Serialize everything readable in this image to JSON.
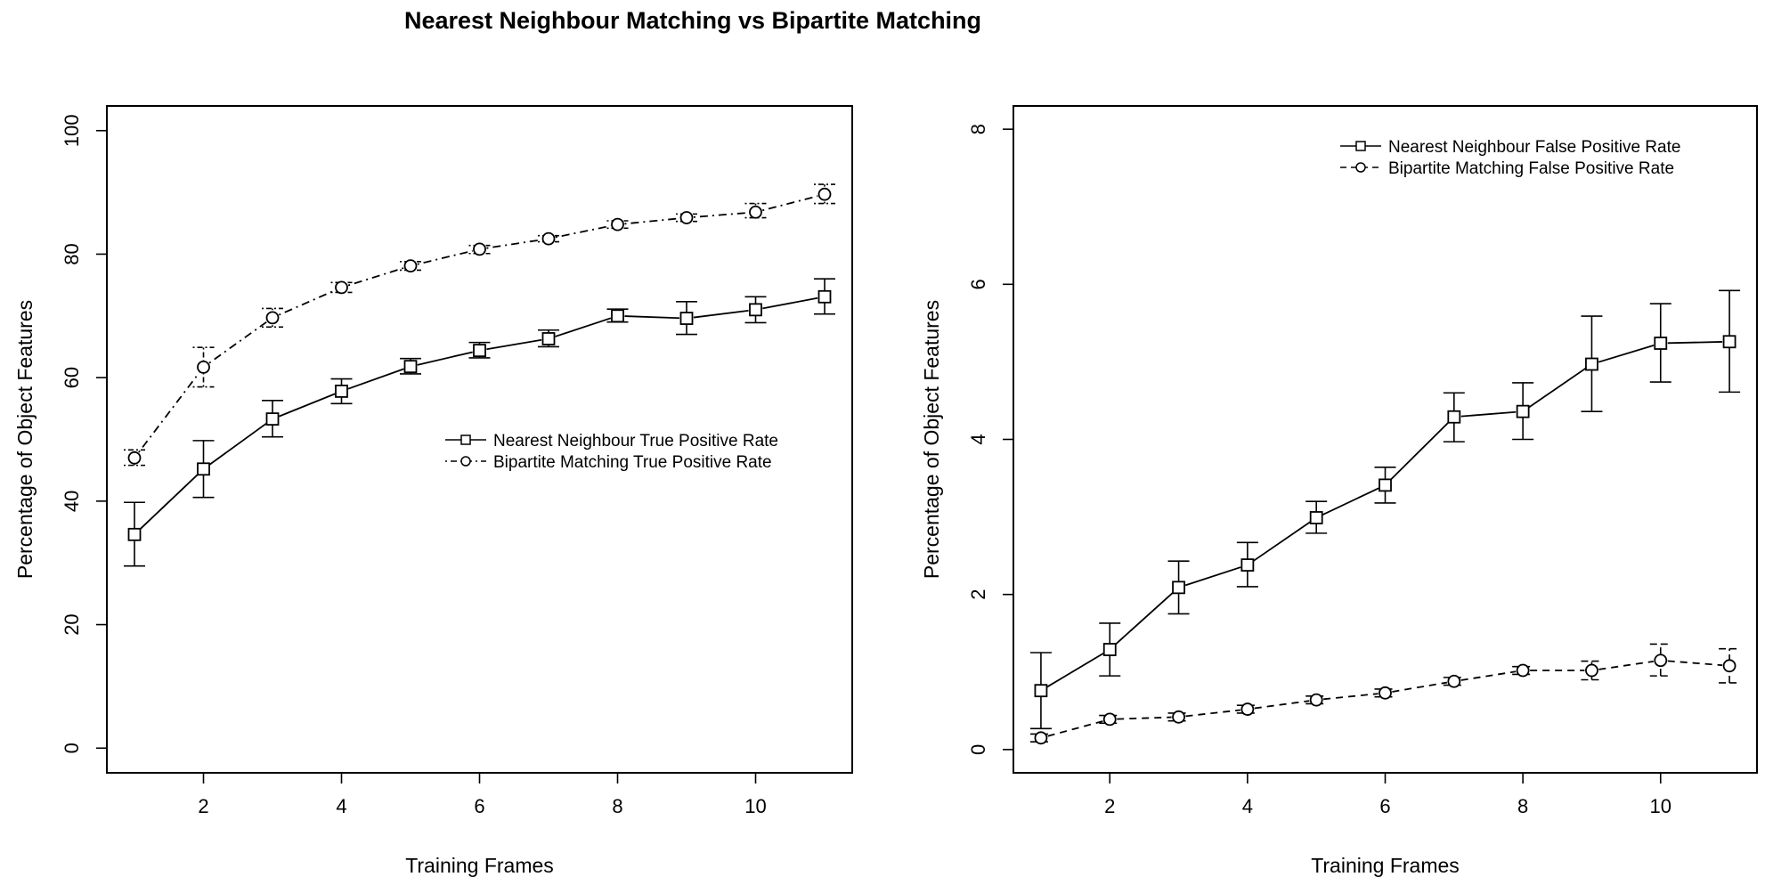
{
  "figure": {
    "title": "Nearest Neighbour Matching vs Bipartite Matching"
  },
  "chart_data": [
    {
      "type": "line",
      "xlabel": "Training Frames",
      "ylabel": "Percentage of Object Features",
      "xlim": [
        0.6,
        11.4
      ],
      "ylim": [
        -4,
        104
      ],
      "xticks": [
        2,
        4,
        6,
        8,
        10
      ],
      "yticks": [
        0,
        20,
        40,
        60,
        80,
        100
      ],
      "grid": false,
      "legend_position": "center-right",
      "series": [
        {
          "name": "Nearest Neighbour True Positive Rate",
          "marker": "square",
          "line_style": "solid",
          "x": [
            1,
            2,
            3,
            4,
            5,
            6,
            7,
            8,
            9,
            10,
            11
          ],
          "values": [
            34.6,
            45.2,
            53.3,
            57.8,
            61.8,
            64.4,
            66.3,
            70.0,
            69.6,
            71.0,
            73.1
          ],
          "error_low": [
            29.5,
            40.6,
            50.4,
            55.8,
            60.6,
            63.2,
            65.0,
            69.0,
            67.0,
            68.9,
            70.3
          ],
          "error_high": [
            39.8,
            49.8,
            56.3,
            59.8,
            63.1,
            65.7,
            67.7,
            71.1,
            72.3,
            73.1,
            76.0
          ]
        },
        {
          "name": "Bipartite Matching True Positive Rate",
          "marker": "circle",
          "line_style": "dotdash",
          "x": [
            1,
            2,
            3,
            4,
            5,
            6,
            7,
            8,
            9,
            10,
            11
          ],
          "values": [
            47.0,
            61.7,
            69.7,
            74.6,
            78.1,
            80.8,
            82.5,
            84.8,
            85.9,
            86.8,
            89.7
          ],
          "error_low": [
            45.8,
            58.5,
            68.2,
            73.8,
            77.4,
            80.1,
            82.0,
            84.2,
            85.3,
            85.9,
            88.2
          ],
          "error_high": [
            48.3,
            64.9,
            71.2,
            75.4,
            78.8,
            81.4,
            83.0,
            85.4,
            86.5,
            88.2,
            91.3
          ]
        }
      ]
    },
    {
      "type": "line",
      "xlabel": "Training Frames",
      "ylabel": "Percentage of Object Features",
      "xlim": [
        0.6,
        11.4
      ],
      "ylim": [
        -0.3,
        8.3
      ],
      "xticks": [
        2,
        4,
        6,
        8,
        10
      ],
      "yticks": [
        0,
        2,
        4,
        6,
        8
      ],
      "grid": false,
      "legend_position": "top-right",
      "series": [
        {
          "name": "Nearest Neighbour False Positive Rate",
          "marker": "square",
          "line_style": "solid",
          "x": [
            1,
            2,
            3,
            4,
            5,
            6,
            7,
            8,
            9,
            10,
            11
          ],
          "values": [
            0.76,
            1.29,
            2.09,
            2.38,
            2.99,
            3.41,
            4.29,
            4.36,
            4.97,
            5.24,
            5.26
          ],
          "error_low": [
            0.27,
            0.95,
            1.75,
            2.1,
            2.79,
            3.18,
            3.97,
            4.0,
            4.36,
            4.74,
            4.61
          ],
          "error_high": [
            1.25,
            1.63,
            2.43,
            2.67,
            3.2,
            3.64,
            4.6,
            4.73,
            5.59,
            5.75,
            5.92
          ]
        },
        {
          "name": "Bipartite Matching False Positive Rate",
          "marker": "circle",
          "line_style": "dashed",
          "x": [
            1,
            2,
            3,
            4,
            5,
            6,
            7,
            8,
            9,
            10,
            11
          ],
          "values": [
            0.15,
            0.39,
            0.42,
            0.52,
            0.64,
            0.73,
            0.88,
            1.02,
            1.02,
            1.15,
            1.08
          ],
          "error_low": [
            0.1,
            0.34,
            0.37,
            0.47,
            0.59,
            0.68,
            0.83,
            0.97,
            0.9,
            0.95,
            0.86
          ],
          "error_high": [
            0.2,
            0.44,
            0.47,
            0.57,
            0.69,
            0.78,
            0.93,
            1.07,
            1.14,
            1.36,
            1.3
          ]
        }
      ]
    }
  ]
}
